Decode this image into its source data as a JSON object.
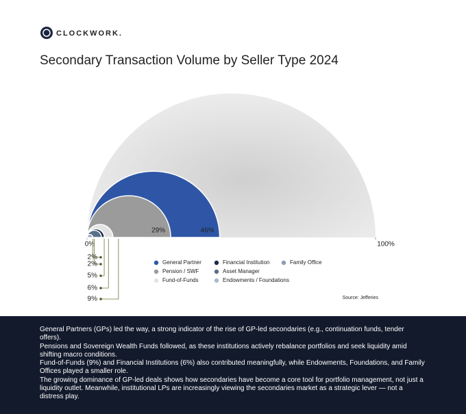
{
  "brand": "CLOCKWORK.",
  "chart_data": {
    "type": "nested-semicircle",
    "title": "Secondary Transaction Volume by Seller Type 2024",
    "categories": [
      "General Partner",
      "Pension / SWF",
      "Fund-of-Funds",
      "Financial Institution",
      "Asset Manager",
      "Endowments / Foundations",
      "Family Office"
    ],
    "values": [
      46,
      29,
      9,
      6,
      5,
      2,
      2
    ],
    "value_labels": [
      "46%",
      "29%",
      "9%",
      "6%",
      "5%",
      "2%",
      "2%"
    ],
    "colors": [
      "#2f56a6",
      "#9b9b9b",
      "#e3e3e3",
      "#1e2a45",
      "#5b7088",
      "#aab9cd",
      "#8c9db7"
    ],
    "xlim": [
      0,
      100
    ],
    "xticks": [
      {
        "value": 0,
        "label": "0%"
      },
      {
        "value": 100,
        "label": "100%"
      }
    ],
    "source": "Source: Jefferies"
  },
  "notes": [
    "General Partners (GPs) led the way, a strong indicator of the rise of GP-led secondaries (e.g., continuation funds, tender offers).",
    "Pensions and Sovereign Wealth Funds followed, as these institutions actively rebalance portfolios and seek liquidity amid shifting macro conditions.",
    "Fund-of-Funds (9%) and Financial Institutions (6%) also contributed meaningfully, while Endowments, Foundations, and Family Offices played a smaller role.",
    "The growing dominance of GP-led deals shows how secondaries have become a core tool for portfolio management, not just a liquidity outlet. Meanwhile, institutional LPs are increasingly viewing the secondaries market as a strategic lever — not a distress play."
  ]
}
